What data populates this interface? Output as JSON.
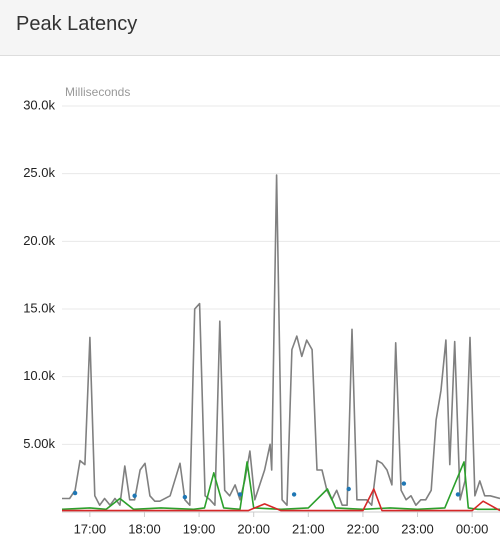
{
  "header": {
    "title": "Peak Latency"
  },
  "chart_data": {
    "type": "line",
    "y_label": "Milliseconds",
    "xlim": [
      16.49,
      24.51
    ],
    "xticks": [
      {
        "value": 17,
        "label": "17:00"
      },
      {
        "value": 18,
        "label": "18:00"
      },
      {
        "value": 19,
        "label": "19:00"
      },
      {
        "value": 20,
        "label": "20:00"
      },
      {
        "value": 21,
        "label": "21:00"
      },
      {
        "value": 22,
        "label": "22:00"
      },
      {
        "value": 23,
        "label": "23:00"
      },
      {
        "value": 24,
        "label": "00:00"
      }
    ],
    "ylim": [
      0,
      30000
    ],
    "yticks": [
      {
        "value": 5000,
        "label": "5.00k"
      },
      {
        "value": 10000,
        "label": "10.0k"
      },
      {
        "value": 15000,
        "label": "15.0k"
      },
      {
        "value": 20000,
        "label": "20.0k"
      },
      {
        "value": 25000,
        "label": "25.0k"
      },
      {
        "value": 30000,
        "label": "30.0k"
      }
    ],
    "grid": true,
    "series": [
      {
        "color": "#808080",
        "style": "line",
        "x": [
          16.49,
          16.63,
          16.73,
          16.82,
          16.91,
          17.0,
          17.09,
          17.18,
          17.27,
          17.37,
          17.46,
          17.55,
          17.64,
          17.73,
          17.82,
          17.92,
          18.01,
          18.1,
          18.19,
          18.28,
          18.47,
          18.65,
          18.74,
          18.83,
          18.92,
          19.01,
          19.11,
          19.2,
          19.29,
          19.38,
          19.47,
          19.56,
          19.66,
          19.75,
          19.84,
          19.93,
          20.02,
          20.11,
          20.2,
          20.3,
          20.33,
          20.42,
          20.52,
          20.61,
          20.7,
          20.79,
          20.88,
          20.97,
          21.07,
          21.16,
          21.25,
          21.34,
          21.43,
          21.52,
          21.62,
          21.71,
          21.8,
          21.89,
          21.98,
          22.07,
          22.16,
          22.26,
          22.35,
          22.44,
          22.53,
          22.6,
          22.7,
          22.79,
          22.88,
          22.97,
          23.06,
          23.15,
          23.25,
          23.34,
          23.43,
          23.52,
          23.59,
          23.68,
          23.78,
          23.87,
          23.96,
          24.05,
          24.14,
          24.23,
          24.33,
          24.51
        ],
        "values": [
          1000,
          1000,
          1600,
          3800,
          3500,
          12900,
          1200,
          500,
          1000,
          500,
          1000,
          500,
          3400,
          900,
          900,
          3100,
          3600,
          1200,
          800,
          800,
          1200,
          3600,
          900,
          500,
          15000,
          15400,
          1200,
          900,
          500,
          14100,
          1600,
          1200,
          2000,
          900,
          2400,
          4500,
          900,
          2000,
          3100,
          5000,
          3100,
          24900,
          900,
          500,
          12000,
          13000,
          11500,
          12700,
          12000,
          3100,
          3100,
          1600,
          900,
          1600,
          500,
          500,
          13500,
          900,
          900,
          900,
          500,
          3800,
          3600,
          3100,
          2000,
          12500,
          1600,
          900,
          1200,
          500,
          900,
          900,
          1600,
          6800,
          9000,
          12700,
          3500,
          12600,
          900,
          2300,
          12900,
          1200,
          2300,
          1200,
          1200,
          1000
        ]
      },
      {
        "color": "#2ca02c",
        "style": "line",
        "x": [
          16.49,
          17.0,
          17.3,
          17.55,
          17.8,
          18.3,
          18.9,
          19.1,
          19.27,
          19.45,
          19.75,
          19.88,
          20.0,
          20.5,
          21.0,
          21.35,
          21.5,
          22.0,
          22.5,
          23.0,
          23.5,
          23.85,
          23.93,
          24.1,
          24.51
        ],
        "values": [
          200,
          300,
          200,
          1000,
          200,
          300,
          200,
          300,
          2900,
          300,
          200,
          3700,
          300,
          200,
          300,
          1700,
          300,
          200,
          300,
          200,
          300,
          3700,
          300,
          200,
          200
        ]
      },
      {
        "color": "#d62728",
        "style": "line",
        "x": [
          16.49,
          18.0,
          19.0,
          19.9,
          20.2,
          20.5,
          21.0,
          22.0,
          22.2,
          22.35,
          22.5,
          23.0,
          24.0,
          24.2,
          24.51
        ],
        "values": [
          100,
          100,
          100,
          100,
          600,
          100,
          100,
          100,
          1700,
          100,
          100,
          100,
          100,
          800,
          100
        ]
      },
      {
        "color": "#1f77b4",
        "style": "dots",
        "x": [
          16.73,
          17.82,
          18.74,
          19.75,
          20.74,
          21.74,
          22.75,
          23.74
        ],
        "values": [
          1400,
          1200,
          1100,
          1300,
          1300,
          1700,
          2100,
          1300
        ]
      }
    ]
  }
}
